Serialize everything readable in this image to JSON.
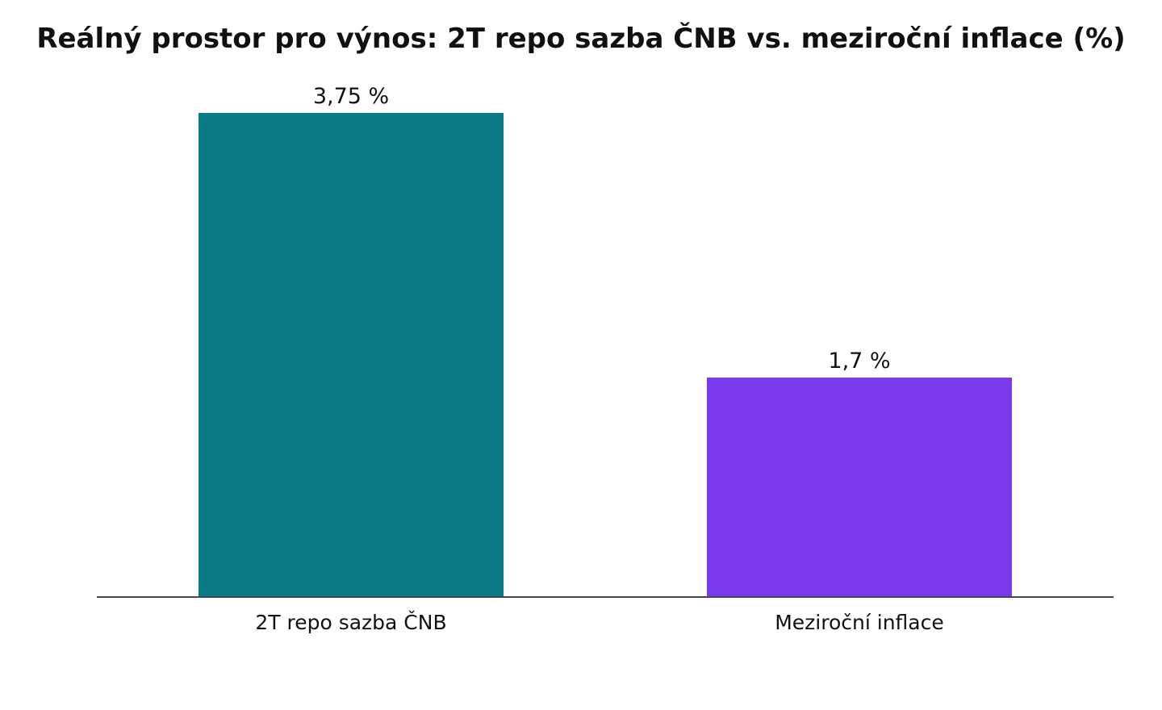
{
  "chart_data": {
    "type": "bar",
    "title": "Reálný prostor pro výnos: 2T repo sazba ČNB vs. meziroční inflace (%)",
    "categories": [
      "2T repo sazba ČNB",
      "Meziroční inflace"
    ],
    "values": [
      3.75,
      1.7
    ],
    "value_labels": [
      "3,75 %",
      "1,7 %"
    ],
    "colors": [
      "#0b7a84",
      "#7c3aed"
    ],
    "ylim": [
      0,
      3.75
    ],
    "xlabel": "",
    "ylabel": "",
    "grid": false,
    "legend": "none"
  }
}
